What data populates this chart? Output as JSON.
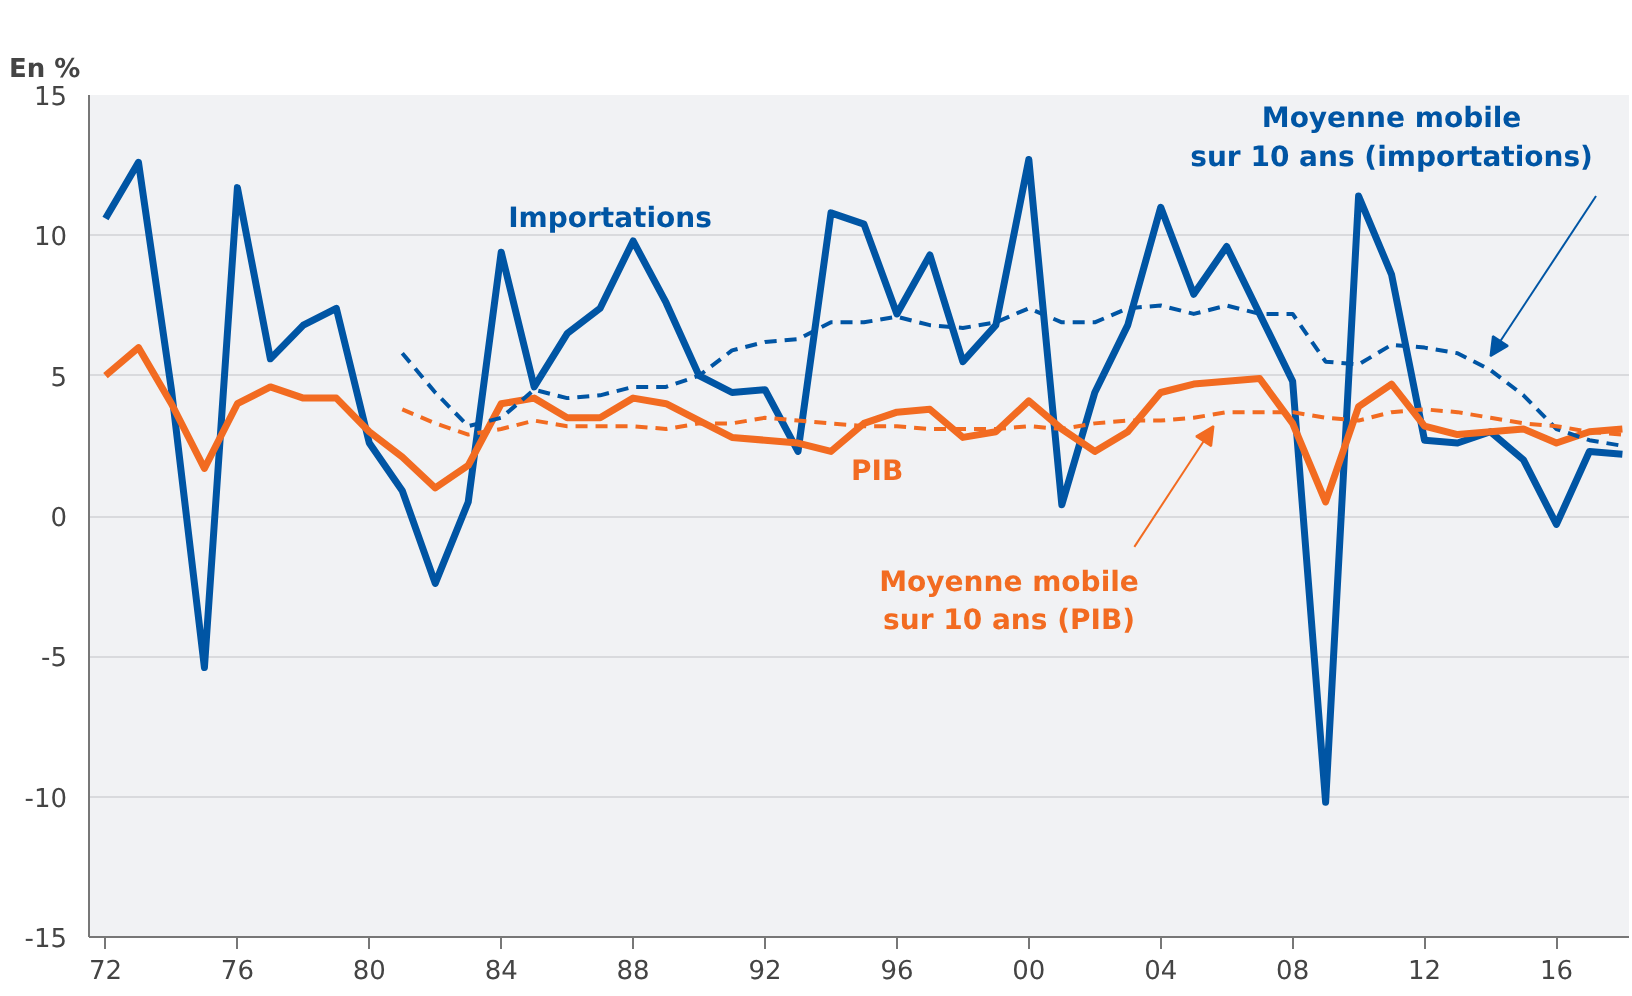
{
  "chart_data": {
    "type": "line",
    "ylabel": "En %",
    "x": [
      1972,
      1973,
      1974,
      1975,
      1976,
      1977,
      1978,
      1979,
      1980,
      1981,
      1982,
      1983,
      1984,
      1985,
      1986,
      1987,
      1988,
      1989,
      1990,
      1991,
      1992,
      1993,
      1994,
      1995,
      1996,
      1997,
      1998,
      1999,
      2000,
      2001,
      2002,
      2003,
      2004,
      2005,
      2006,
      2007,
      2008,
      2009,
      2010,
      2011,
      2012,
      2013,
      2014,
      2015,
      2016,
      2017,
      2018
    ],
    "series": [
      {
        "name": "Importations",
        "color": "#0055a4",
        "line_style": "solid",
        "values": [
          10.6,
          12.6,
          4.5,
          -5.4,
          11.7,
          5.6,
          6.8,
          7.4,
          2.6,
          0.9,
          -2.4,
          0.5,
          9.4,
          4.6,
          6.5,
          7.4,
          9.8,
          7.6,
          5.0,
          4.4,
          4.5,
          2.3,
          10.8,
          10.4,
          7.2,
          9.3,
          5.5,
          6.8,
          12.7,
          0.4,
          4.4,
          6.8,
          11.0,
          7.9,
          9.6,
          7.2,
          4.8,
          -10.2,
          11.4,
          8.6,
          2.7,
          2.6,
          3.0,
          2.0,
          -0.3,
          2.3,
          2.2
        ]
      },
      {
        "name": "PIB",
        "color": "#f26b21",
        "line_style": "solid",
        "values": [
          5.0,
          6.0,
          4.0,
          1.7,
          4.0,
          4.6,
          4.2,
          4.2,
          3.0,
          2.1,
          1.0,
          1.8,
          4.0,
          4.2,
          3.5,
          3.5,
          4.2,
          4.0,
          3.4,
          2.8,
          2.7,
          2.6,
          2.3,
          3.3,
          3.7,
          3.8,
          2.8,
          3.0,
          4.1,
          3.1,
          2.3,
          3.0,
          4.4,
          4.7,
          4.8,
          4.9,
          3.3,
          0.5,
          3.9,
          4.7,
          3.2,
          2.9,
          3.0,
          3.1,
          2.6,
          3.0,
          3.1
        ]
      },
      {
        "name": "Moyenne mobile sur 10 ans (importations)",
        "color": "#0055a4",
        "line_style": "dashed",
        "values": [
          null,
          null,
          null,
          null,
          null,
          null,
          null,
          null,
          null,
          5.8,
          4.4,
          3.2,
          3.5,
          4.5,
          4.2,
          4.3,
          4.6,
          4.6,
          5.0,
          5.9,
          6.2,
          6.3,
          6.9,
          6.9,
          7.1,
          6.8,
          6.7,
          6.9,
          7.4,
          6.9,
          6.9,
          7.4,
          7.5,
          7.2,
          7.5,
          7.2,
          7.2,
          5.5,
          5.4,
          6.1,
          6.0,
          5.8,
          5.2,
          4.3,
          3.1,
          2.7,
          2.5
        ]
      },
      {
        "name": "Moyenne mobile sur 10 ans (PIB)",
        "color": "#f26b21",
        "line_style": "dashed",
        "values": [
          null,
          null,
          null,
          null,
          null,
          null,
          null,
          null,
          null,
          3.8,
          3.3,
          2.9,
          3.1,
          3.4,
          3.2,
          3.2,
          3.2,
          3.1,
          3.3,
          3.3,
          3.5,
          3.4,
          3.3,
          3.2,
          3.2,
          3.1,
          3.1,
          3.1,
          3.2,
          3.1,
          3.3,
          3.4,
          3.4,
          3.5,
          3.7,
          3.7,
          3.7,
          3.5,
          3.4,
          3.7,
          3.8,
          3.7,
          3.5,
          3.3,
          3.2,
          3.0,
          2.9
        ]
      }
    ],
    "xlim": [
      1971.5,
      2018.2
    ],
    "xticks": [
      {
        "value": 1972,
        "label": "72"
      },
      {
        "value": 1976,
        "label": "76"
      },
      {
        "value": 1980,
        "label": "80"
      },
      {
        "value": 1984,
        "label": "84"
      },
      {
        "value": 1988,
        "label": "88"
      },
      {
        "value": 1992,
        "label": "92"
      },
      {
        "value": 1996,
        "label": "96"
      },
      {
        "value": 2000,
        "label": "00"
      },
      {
        "value": 2004,
        "label": "04"
      },
      {
        "value": 2008,
        "label": "08"
      },
      {
        "value": 2012,
        "label": "12"
      },
      {
        "value": 2016,
        "label": "16"
      }
    ],
    "ylim": [
      -15,
      15
    ],
    "yticks": [
      -15,
      -10,
      -5,
      0,
      5,
      10,
      15
    ],
    "grid": "y"
  }
}
